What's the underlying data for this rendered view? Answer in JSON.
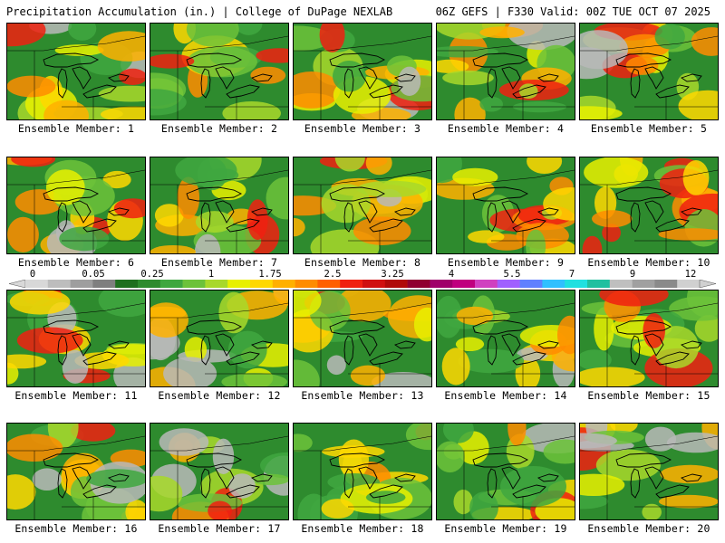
{
  "header": {
    "left_title": "Precipitation Accumulation (in.) | College of DuPage NEXLAB",
    "right_title": "06Z GEFS | F330 Valid: 00Z TUE OCT 07 2025"
  },
  "colorbar": {
    "labels": [
      "0",
      "0.05",
      "0.25",
      "1",
      "1.75",
      "2.5",
      "3.25",
      "4",
      "5.5",
      "7",
      "9",
      "12"
    ],
    "colors": [
      "#d8d8d8",
      "#bdbdbd",
      "#9e9e9e",
      "#7f7f7f",
      "#1f6f1f",
      "#2e8b2e",
      "#3fa73f",
      "#6cc23a",
      "#a8d82a",
      "#e8f000",
      "#ffd800",
      "#ffb000",
      "#ff8c00",
      "#ff6000",
      "#f02010",
      "#d01010",
      "#b00a0a",
      "#900030",
      "#a0006a",
      "#c0007f",
      "#d040c0",
      "#a060ff",
      "#6080ff",
      "#30c0ff",
      "#20e0e0",
      "#20c0a0",
      "#bfbfbf",
      "#a0a0a0",
      "#8a8a8a",
      "#d0d0d0"
    ]
  },
  "members": [
    {
      "label": "Ensemble Member: 1"
    },
    {
      "label": "Ensemble Member: 2"
    },
    {
      "label": "Ensemble Member: 3"
    },
    {
      "label": "Ensemble Member: 4"
    },
    {
      "label": "Ensemble Member: 5"
    },
    {
      "label": "Ensemble Member: 6"
    },
    {
      "label": "Ensemble Member: 7"
    },
    {
      "label": "Ensemble Member: 8"
    },
    {
      "label": "Ensemble Member: 9"
    },
    {
      "label": "Ensemble Member: 10"
    },
    {
      "label": "Ensemble Member: 11"
    },
    {
      "label": "Ensemble Member: 12"
    },
    {
      "label": "Ensemble Member: 13"
    },
    {
      "label": "Ensemble Member: 14"
    },
    {
      "label": "Ensemble Member: 15"
    },
    {
      "label": "Ensemble Member: 16"
    },
    {
      "label": "Ensemble Member: 17"
    },
    {
      "label": "Ensemble Member: 18"
    },
    {
      "label": "Ensemble Member: 19"
    },
    {
      "label": "Ensemble Member: 20"
    }
  ]
}
